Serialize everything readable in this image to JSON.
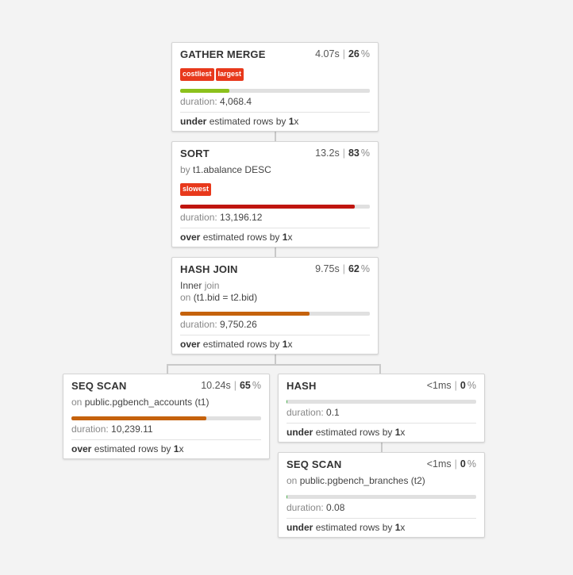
{
  "nodes": {
    "gather_merge": {
      "title": "GATHER MERGE",
      "time": "4.07s",
      "pct": "26",
      "pct_sign": "%",
      "badges": [
        "costliest",
        "largest"
      ],
      "bar_fraction": 0.26,
      "bar_color": "#8cc11c",
      "duration_label": "duration:",
      "duration_value": "4,068.4",
      "est_dir": "under",
      "est_text": "estimated rows by",
      "est_factor": "1",
      "est_x": "x"
    },
    "sort": {
      "title": "SORT",
      "time": "13.2s",
      "pct": "83",
      "pct_sign": "%",
      "detail_kw": "by",
      "detail_val": "t1.abalance DESC",
      "badges": [
        "slowest"
      ],
      "bar_fraction": 0.92,
      "bar_color": "#c0150f",
      "duration_label": "duration:",
      "duration_value": "13,196.12",
      "est_dir": "over",
      "est_text": "estimated rows by",
      "est_factor": "1",
      "est_x": "x"
    },
    "hash_join": {
      "title": "HASH JOIN",
      "time": "9.75s",
      "pct": "62",
      "pct_sign": "%",
      "detail_a_val": "Inner",
      "detail_a_kw": "join",
      "detail_b_kw": "on",
      "detail_b_val": "(t1.bid = t2.bid)",
      "bar_fraction": 0.68,
      "bar_color": "#c5620c",
      "duration_label": "duration:",
      "duration_value": "9,750.26",
      "est_dir": "over",
      "est_text": "estimated rows by",
      "est_factor": "1",
      "est_x": "x"
    },
    "seq_scan_accounts": {
      "title": "SEQ SCAN",
      "time": "10.24s",
      "pct": "65",
      "pct_sign": "%",
      "detail_kw": "on",
      "detail_val": "public.pgbench_accounts (t1)",
      "bar_fraction": 0.71,
      "bar_color": "#c5620c",
      "duration_label": "duration:",
      "duration_value": "10,239.11",
      "est_dir": "over",
      "est_text": "estimated rows by",
      "est_factor": "1",
      "est_x": "x"
    },
    "hash": {
      "title": "HASH",
      "time": "<1ms",
      "pct": "0",
      "pct_sign": "%",
      "bar_fraction": 0.005,
      "bar_color": "#4caf50",
      "duration_label": "duration:",
      "duration_value": "0.1",
      "est_dir": "under",
      "est_text": "estimated rows by",
      "est_factor": "1",
      "est_x": "x"
    },
    "seq_scan_branches": {
      "title": "SEQ SCAN",
      "time": "<1ms",
      "pct": "0",
      "pct_sign": "%",
      "detail_kw": "on",
      "detail_val": "public.pgbench_branches (t2)",
      "bar_fraction": 0.005,
      "bar_color": "#4caf50",
      "duration_label": "duration:",
      "duration_value": "0.08",
      "est_dir": "under",
      "est_text": "estimated rows by",
      "est_factor": "1",
      "est_x": "x"
    }
  }
}
